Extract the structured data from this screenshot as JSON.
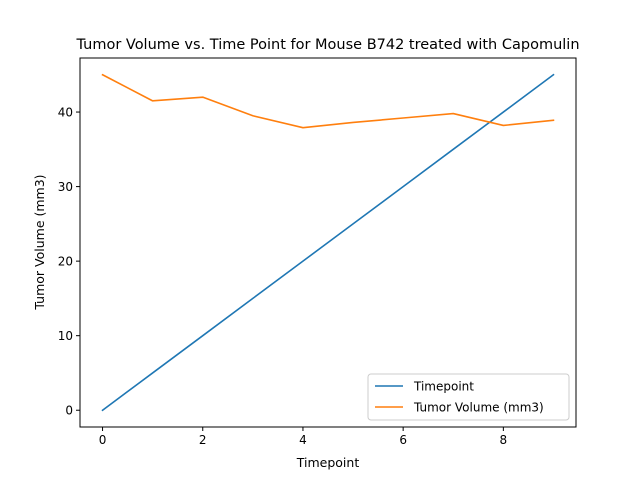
{
  "chart_data": {
    "type": "line",
    "title": "Tumor Volume vs. Time Point for Mouse B742 treated with Capomulin",
    "xlabel": "Timepoint",
    "ylabel": "Tumor Volume (mm3)",
    "xlim": [
      -0.45,
      9.45
    ],
    "ylim": [
      -2.25,
      47.25
    ],
    "xticks": [
      0,
      2,
      4,
      6,
      8
    ],
    "yticks": [
      0,
      10,
      20,
      30,
      40
    ],
    "x": [
      0,
      1,
      2,
      3,
      4,
      5,
      6,
      7,
      8,
      9
    ],
    "series": [
      {
        "name": "Timepoint",
        "color": "#1f77b4",
        "values": [
          0,
          5,
          10,
          15,
          20,
          25,
          30,
          35,
          40,
          45
        ]
      },
      {
        "name": "Tumor Volume (mm3)",
        "color": "#ff7f0e",
        "values": [
          45.0,
          41.5,
          42.0,
          39.5,
          37.9,
          38.6,
          39.2,
          39.8,
          38.2,
          38.9
        ]
      }
    ],
    "grid": false,
    "legend": "lower-right"
  }
}
